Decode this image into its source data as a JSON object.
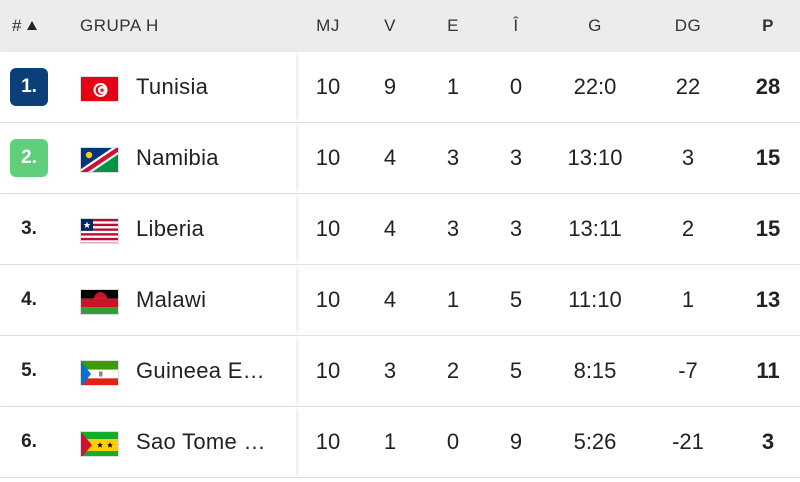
{
  "header": {
    "rank": "#",
    "group": "GRUPA H",
    "mj": "MJ",
    "v": "V",
    "e": "E",
    "i": "Î",
    "g": "G",
    "dg": "DG",
    "p": "P"
  },
  "colors": {
    "rank1": "#0c3e7a",
    "rank2": "#5fcf7b"
  },
  "rows": [
    {
      "rank": "1.",
      "team": "Tunisia",
      "flag": "tunisia-flag-icon",
      "mj": "10",
      "v": "9",
      "e": "1",
      "i": "0",
      "g": "22:0",
      "dg": "22",
      "p": "28"
    },
    {
      "rank": "2.",
      "team": "Namibia",
      "flag": "namibia-flag-icon",
      "mj": "10",
      "v": "4",
      "e": "3",
      "i": "3",
      "g": "13:10",
      "dg": "3",
      "p": "15"
    },
    {
      "rank": "3.",
      "team": "Liberia",
      "flag": "liberia-flag-icon",
      "mj": "10",
      "v": "4",
      "e": "3",
      "i": "3",
      "g": "13:11",
      "dg": "2",
      "p": "15"
    },
    {
      "rank": "4.",
      "team": "Malawi",
      "flag": "malawi-flag-icon",
      "mj": "10",
      "v": "4",
      "e": "1",
      "i": "5",
      "g": "11:10",
      "dg": "1",
      "p": "13"
    },
    {
      "rank": "5.",
      "team": "Guineea E…",
      "flag": "equatorial-guinea-flag-icon",
      "mj": "10",
      "v": "3",
      "e": "2",
      "i": "5",
      "g": "8:15",
      "dg": "-7",
      "p": "11"
    },
    {
      "rank": "6.",
      "team": "Sao Tome …",
      "flag": "sao-tome-flag-icon",
      "mj": "10",
      "v": "1",
      "e": "0",
      "i": "9",
      "g": "5:26",
      "dg": "-21",
      "p": "3"
    }
  ]
}
